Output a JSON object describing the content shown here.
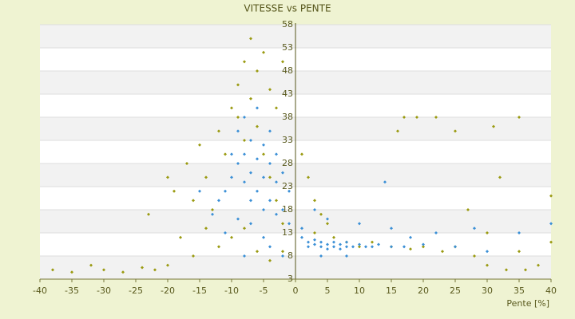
{
  "chart_data": {
    "type": "scatter",
    "title": "VITESSE vs PENTE",
    "x_label": "Pente [%]",
    "xlim": [
      -40,
      40
    ],
    "xticks": [
      -40,
      -35,
      -30,
      -25,
      -20,
      -15,
      -10,
      -5,
      0,
      5,
      10,
      15,
      20,
      25,
      30,
      35,
      40
    ],
    "ylim": [
      3,
      58
    ],
    "yticks": [
      3,
      8,
      13,
      18,
      23,
      28,
      33,
      38,
      43,
      48,
      53,
      58
    ],
    "grid": true,
    "series": [
      {
        "color": "#9a9a10",
        "x": [
          -38,
          -35,
          -32,
          -30,
          -27,
          -24,
          -22,
          -20,
          -23,
          -20,
          -19,
          -17,
          -16,
          -15,
          -14,
          -13,
          -12,
          -11,
          -10,
          -9,
          -8,
          -7,
          -9,
          -8,
          -7,
          -6,
          -5,
          -4,
          -3,
          -2,
          -6,
          -5,
          -4,
          -3,
          -2,
          -12,
          -10,
          -8,
          -6,
          -14,
          -16,
          -18,
          -4,
          -2,
          1,
          2,
          3,
          4,
          5,
          3,
          6,
          8,
          10,
          12,
          15,
          18,
          20,
          23,
          25,
          28,
          30,
          33,
          36,
          38,
          40,
          17,
          19,
          22,
          16,
          25,
          31,
          35,
          40,
          27,
          32,
          30,
          35
        ],
        "values": [
          5,
          4.5,
          6,
          5,
          4.5,
          5.5,
          5,
          6,
          17,
          25,
          22,
          28,
          20,
          32,
          25,
          18,
          35,
          30,
          40,
          45,
          50,
          55,
          38,
          33,
          42,
          48,
          52,
          44,
          40,
          50,
          36,
          30,
          25,
          20,
          15,
          10,
          12,
          14,
          9,
          14,
          8,
          12,
          7,
          9,
          30,
          25,
          20,
          17,
          15,
          13,
          12,
          11,
          10,
          11,
          10,
          9.5,
          10,
          9,
          10,
          8,
          6,
          5,
          5,
          6,
          11,
          38,
          38,
          38,
          35,
          35,
          36,
          38,
          21,
          18,
          25,
          13,
          9
        ]
      },
      {
        "color": "#3a8fd6",
        "x": [
          -12,
          -11,
          -10,
          -10,
          -9,
          -9,
          -8,
          -8,
          -8,
          -7,
          -7,
          -7,
          -6,
          -6,
          -6,
          -5,
          -5,
          -5,
          -4,
          -4,
          -4,
          -3,
          -3,
          -3,
          -2,
          -2,
          -1,
          -1,
          -7,
          -5,
          -9,
          -11,
          -13,
          -15,
          -4,
          -2,
          -8,
          1,
          2,
          2,
          3,
          3,
          4,
          4,
          5,
          5,
          6,
          6,
          7,
          7,
          8,
          8,
          9,
          10,
          11,
          12,
          13,
          15,
          17,
          20,
          1,
          3,
          5,
          10,
          15,
          22,
          28,
          35,
          40,
          14,
          8,
          4,
          25,
          30,
          18
        ],
        "values": [
          20,
          22,
          25,
          30,
          28,
          35,
          24,
          30,
          38,
          20,
          26,
          33,
          22,
          29,
          40,
          18,
          25,
          32,
          20,
          28,
          35,
          17,
          24,
          30,
          18,
          26,
          22,
          15,
          15,
          12,
          16,
          13,
          17,
          22,
          10,
          8,
          8,
          12,
          11,
          10,
          10.5,
          11.5,
          10,
          11,
          10.5,
          9.5,
          11,
          10,
          10.5,
          9.5,
          10,
          11,
          10,
          10.5,
          10,
          10,
          10.5,
          10,
          10,
          10.5,
          14,
          18,
          16,
          15,
          14,
          13,
          14,
          13,
          15,
          24,
          8,
          8,
          10,
          9,
          12
        ]
      }
    ]
  }
}
